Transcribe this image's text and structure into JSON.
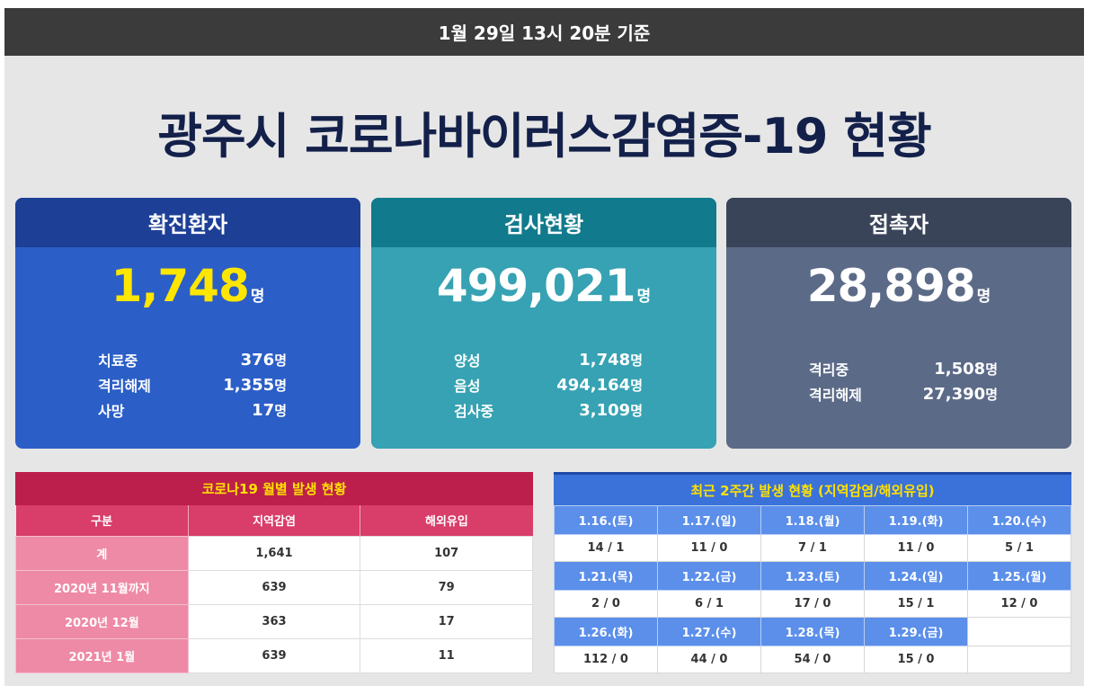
{
  "header": {
    "timestamp": "1월 29일 13시 20분 기준"
  },
  "title": "광주시 코로나바이러스감염증-19 현황",
  "cards": [
    {
      "title": "확진환자",
      "total": "1,748",
      "unit": "명",
      "rows": [
        {
          "label": "치료중",
          "value": "376",
          "unit": "명"
        },
        {
          "label": "격리해제",
          "value": "1,355",
          "unit": "명"
        },
        {
          "label": "사망",
          "value": "17",
          "unit": "명"
        }
      ]
    },
    {
      "title": "검사현황",
      "total": "499,021",
      "unit": "명",
      "rows": [
        {
          "label": "양성",
          "value": "1,748",
          "unit": "명"
        },
        {
          "label": "음성",
          "value": "494,164",
          "unit": "명"
        },
        {
          "label": "검사중",
          "value": "3,109",
          "unit": "명"
        }
      ]
    },
    {
      "title": "접촉자",
      "total": "28,898",
      "unit": "명",
      "rows": [
        {
          "label": "격리중",
          "value": "1,508",
          "unit": "명"
        },
        {
          "label": "격리해제",
          "value": "27,390",
          "unit": "명"
        }
      ]
    }
  ],
  "monthly": {
    "caption": "코로나19 월별 발생 현황",
    "headers": [
      "구분",
      "지역감염",
      "해외유입"
    ],
    "rows": [
      [
        "계",
        "1,641",
        "107"
      ],
      [
        "2020년 11월까지",
        "639",
        "79"
      ],
      [
        "2020년 12월",
        "363",
        "17"
      ],
      [
        "2021년 1월",
        "639",
        "11"
      ]
    ]
  },
  "recent": {
    "caption": "최근 2주간 발생 현황 (지역감염/해외유입)",
    "weeks": [
      {
        "dates": [
          "1.16.(토)",
          "1.17.(일)",
          "1.18.(월)",
          "1.19.(화)",
          "1.20.(수)"
        ],
        "values": [
          "14 / 1",
          "11 / 0",
          "7 / 1",
          "11 / 0",
          "5 / 1"
        ]
      },
      {
        "dates": [
          "1.21.(목)",
          "1.22.(금)",
          "1.23.(토)",
          "1.24.(일)",
          "1.25.(월)"
        ],
        "values": [
          "2 / 0",
          "6 / 1",
          "17 / 0",
          "15 / 1",
          "12 / 0"
        ]
      },
      {
        "dates": [
          "1.26.(화)",
          "1.27.(수)",
          "1.28.(목)",
          "1.29.(금)",
          ""
        ],
        "values": [
          "112 / 0",
          "44 / 0",
          "54 / 0",
          "15 / 0",
          ""
        ]
      }
    ]
  }
}
